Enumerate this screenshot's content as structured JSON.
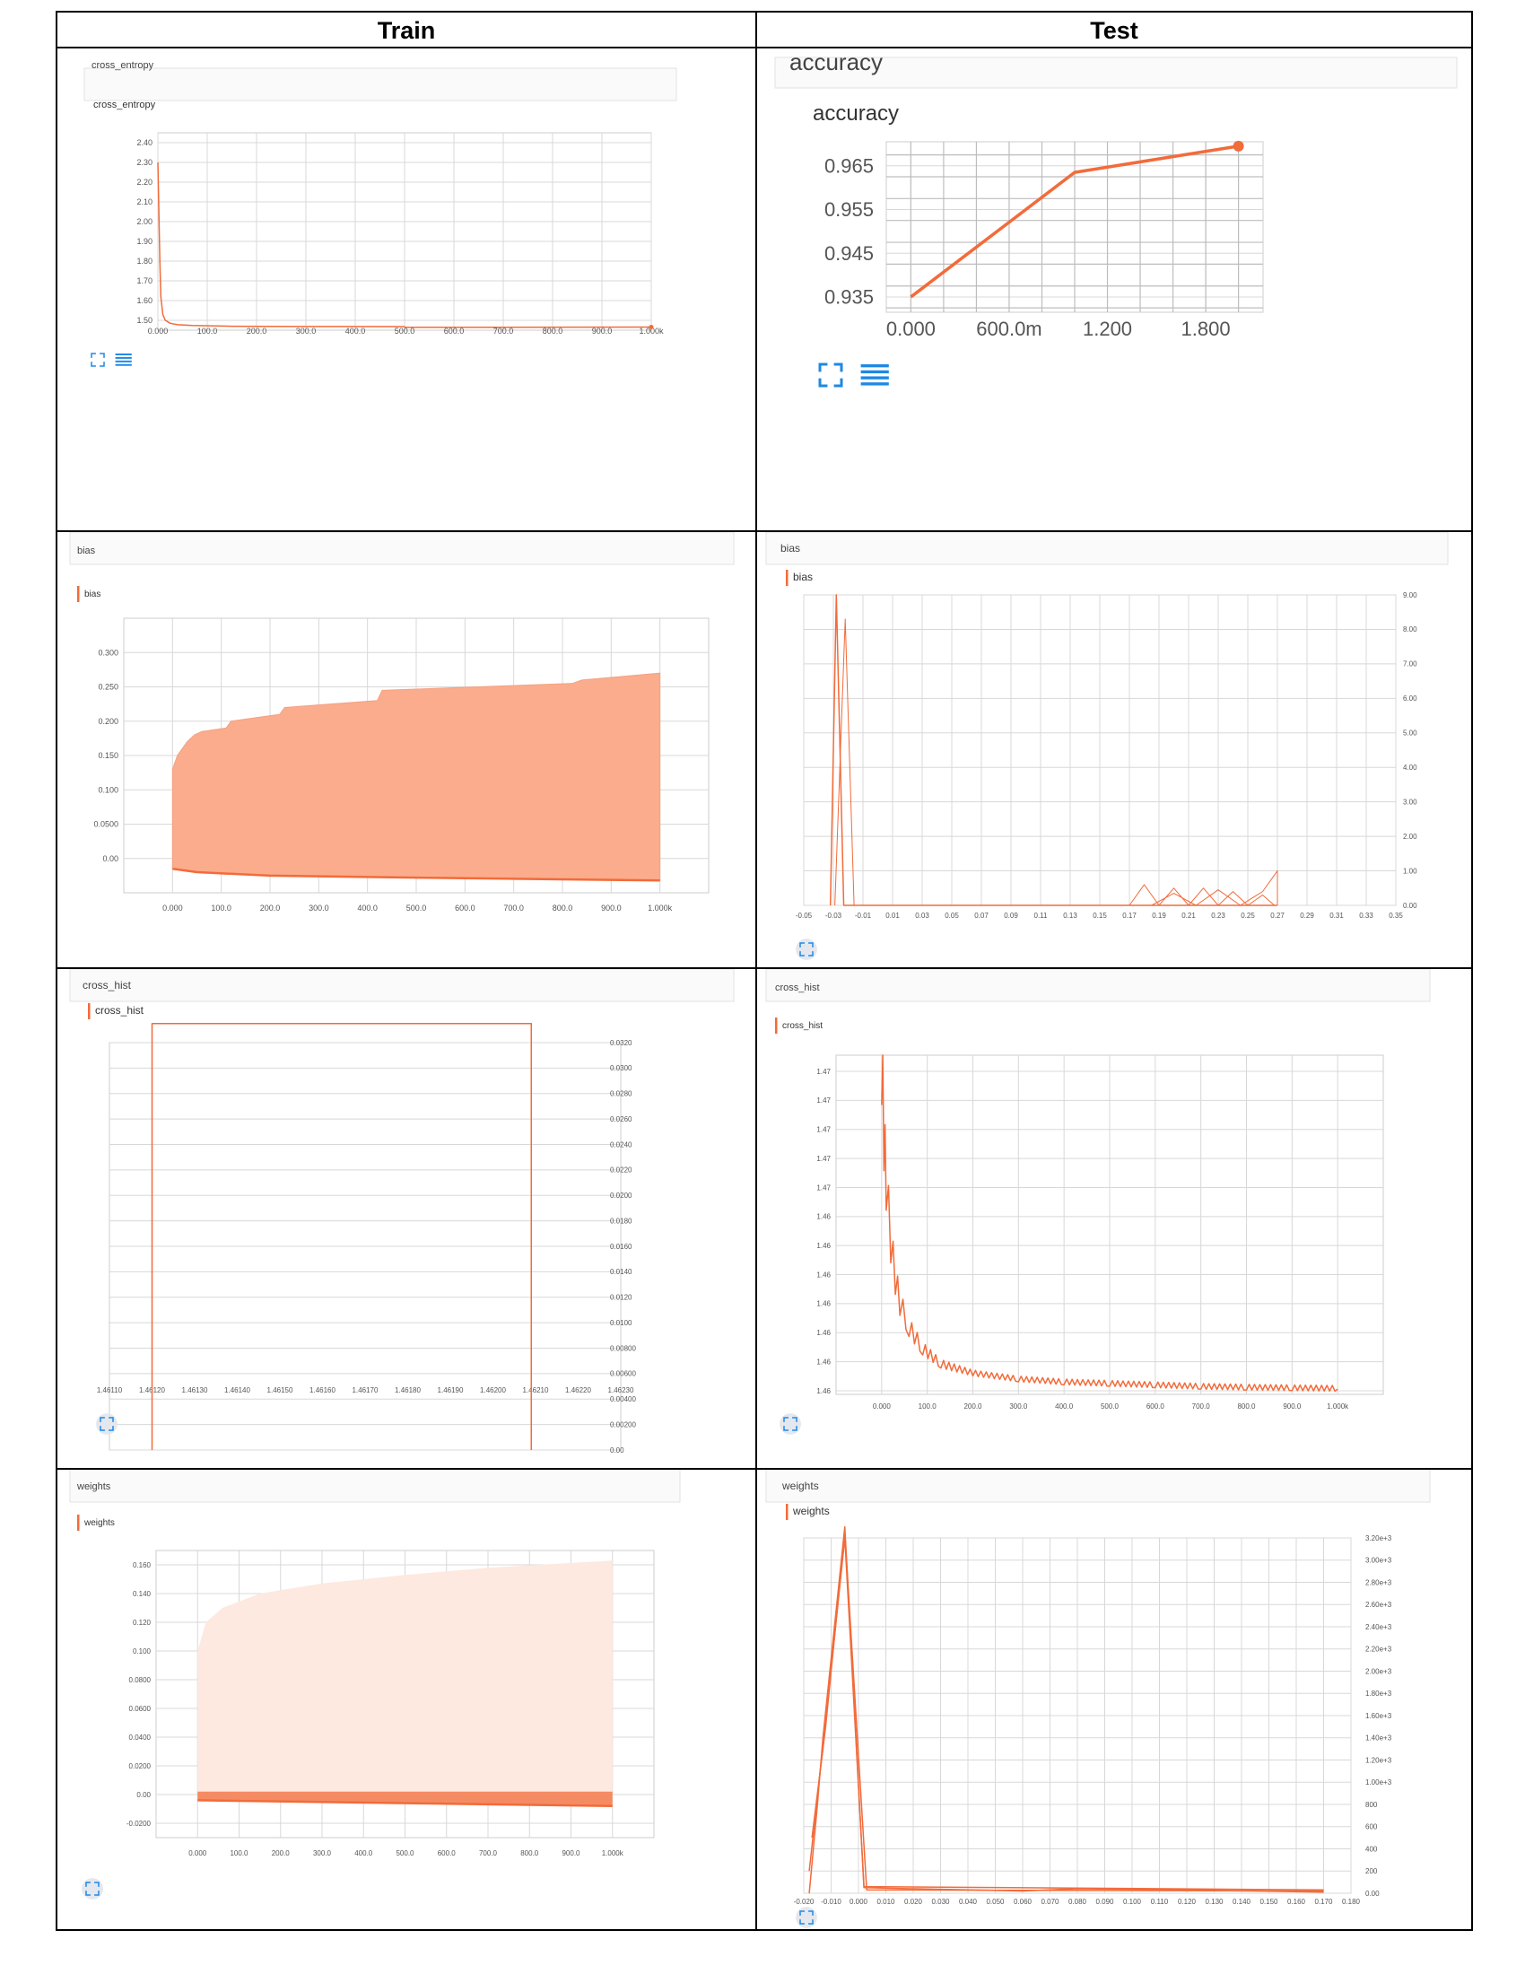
{
  "table": {
    "col_train": "Train",
    "col_test": "Test"
  },
  "colors": {
    "line": "#f26b3a",
    "fill": "#fbac8c",
    "fill_light": "#fde9e0",
    "grid": "#d8d8d8",
    "icon": "#1e88e5"
  },
  "chart_data": [
    {
      "id": "train_cross_entropy",
      "type": "line",
      "tag": "cross_entropy",
      "title": "cross_entropy",
      "xticks": [
        "0.000",
        "100.0",
        "200.0",
        "300.0",
        "400.0",
        "500.0",
        "600.0",
        "700.0",
        "800.0",
        "900.0",
        "1.000k"
      ],
      "yticks": [
        "2.40",
        "2.30",
        "2.20",
        "2.10",
        "2.00",
        "1.90",
        "1.80",
        "1.70",
        "1.60",
        "1.50"
      ],
      "xlim": [
        0,
        1000
      ],
      "ylim": [
        1.45,
        2.45
      ],
      "series": [
        {
          "points": [
            [
              0,
              2.3
            ],
            [
              2,
              2.05
            ],
            [
              4,
              1.8
            ],
            [
              6,
              1.62
            ],
            [
              10,
              1.53
            ],
            [
              15,
              1.5
            ],
            [
              25,
              1.485
            ],
            [
              40,
              1.478
            ],
            [
              70,
              1.474
            ],
            [
              150,
              1.47
            ],
            [
              300,
              1.469
            ],
            [
              499,
              1.468
            ],
            [
              500,
              1.465
            ],
            [
              700,
              1.465
            ],
            [
              1000,
              1.466
            ]
          ]
        }
      ]
    },
    {
      "id": "test_accuracy",
      "type": "line",
      "tag": "accuracy",
      "title": "accuracy",
      "xticks": [
        "0.000",
        "600.0m",
        "1.200",
        "1.800"
      ],
      "yticks": [
        "0.965",
        "0.955",
        "0.945",
        "0.935"
      ],
      "xlim": [
        -0.15,
        2.15
      ],
      "ylim": [
        0.9315,
        0.9705
      ],
      "series": [
        {
          "points": [
            [
              0,
              0.935
            ],
            [
              1,
              0.9635
            ],
            [
              2,
              0.9695
            ]
          ]
        }
      ]
    },
    {
      "id": "train_bias",
      "type": "area",
      "tag": "bias",
      "title": "bias",
      "xticks": [
        "0.000",
        "100.0",
        "200.0",
        "300.0",
        "400.0",
        "500.0",
        "600.0",
        "700.0",
        "800.0",
        "900.0",
        "1.000k"
      ],
      "yticks": [
        "0.300",
        "0.250",
        "0.200",
        "0.150",
        "0.100",
        "0.0500",
        "0.00"
      ],
      "xlim": [
        -100,
        1100
      ],
      "ylim": [
        -0.05,
        0.35
      ],
      "upper": [
        [
          0,
          0.13
        ],
        [
          5,
          0.14
        ],
        [
          10,
          0.15
        ],
        [
          20,
          0.16
        ],
        [
          30,
          0.17
        ],
        [
          45,
          0.18
        ],
        [
          60,
          0.185
        ],
        [
          110,
          0.19
        ],
        [
          120,
          0.2
        ],
        [
          220,
          0.21
        ],
        [
          230,
          0.22
        ],
        [
          420,
          0.23
        ],
        [
          430,
          0.245
        ],
        [
          820,
          0.255
        ],
        [
          840,
          0.26
        ],
        [
          1000,
          0.27
        ]
      ],
      "lower": [
        [
          0,
          -0.015
        ],
        [
          50,
          -0.02
        ],
        [
          200,
          -0.025
        ],
        [
          500,
          -0.028
        ],
        [
          1000,
          -0.032
        ]
      ]
    },
    {
      "id": "test_bias",
      "type": "line",
      "tag": "bias",
      "title": "bias",
      "xticks": [
        "-0.05",
        "-0.03",
        "-0.01",
        "0.01",
        "0.03",
        "0.05",
        "0.07",
        "0.09",
        "0.11",
        "0.13",
        "0.15",
        "0.17",
        "0.19",
        "0.21",
        "0.23",
        "0.25",
        "0.27",
        "0.29",
        "0.31",
        "0.33",
        "0.35"
      ],
      "yticks": [
        "9.00",
        "8.00",
        "7.00",
        "6.00",
        "5.00",
        "4.00",
        "3.00",
        "2.00",
        "1.00",
        "0.00"
      ],
      "xlim": [
        -0.05,
        0.35
      ],
      "ylim": [
        0,
        9
      ],
      "series": [
        {
          "points": [
            [
              -0.032,
              0
            ],
            [
              -0.028,
              9.0
            ],
            [
              -0.023,
              0
            ],
            [
              0.27,
              0
            ]
          ]
        },
        {
          "points": [
            [
              -0.029,
              0
            ],
            [
              -0.022,
              8.3
            ],
            [
              -0.016,
              0
            ]
          ]
        },
        {
          "points": [
            [
              0.17,
              0
            ],
            [
              0.18,
              0.6
            ],
            [
              0.19,
              0
            ],
            [
              0.2,
              0.5
            ],
            [
              0.21,
              0
            ],
            [
              0.22,
              0.5
            ],
            [
              0.23,
              0
            ],
            [
              0.24,
              0.4
            ],
            [
              0.25,
              0
            ],
            [
              0.26,
              0.3
            ],
            [
              0.268,
              0
            ]
          ]
        },
        {
          "points": [
            [
              0.185,
              0
            ],
            [
              0.2,
              0.35
            ],
            [
              0.215,
              0
            ],
            [
              0.23,
              0.45
            ],
            [
              0.245,
              0
            ],
            [
              0.26,
              0.4
            ],
            [
              0.27,
              1.0
            ],
            [
              0.27,
              0
            ]
          ]
        }
      ]
    },
    {
      "id": "train_cross_hist",
      "type": "line",
      "tag": "cross_hist",
      "title": "cross_hist",
      "xticks": [
        "1.46110",
        "1.46120",
        "1.46130",
        "1.46140",
        "1.46150",
        "1.46160",
        "1.46170",
        "1.46180",
        "1.46190",
        "1.46200",
        "1.46210",
        "1.46220",
        "1.46230"
      ],
      "yticks": [
        "0.0320",
        "0.0300",
        "0.0280",
        "0.0260",
        "0.0240",
        "0.0220",
        "0.0200",
        "0.0180",
        "0.0160",
        "0.0140",
        "0.0120",
        "0.0100",
        "0.00800",
        "0.00600",
        "0.00400",
        "0.00200",
        "0.00"
      ],
      "xlim": [
        1.4611,
        1.4623
      ],
      "ylim": [
        0,
        0.032
      ],
      "series": [
        {
          "points": [
            [
              1.4612,
              0
            ],
            [
              1.4612,
              0.0335
            ],
            [
              1.46209,
              0.0335
            ],
            [
              1.46209,
              0
            ]
          ]
        }
      ]
    },
    {
      "id": "test_cross_hist",
      "type": "line",
      "tag": "cross_hist",
      "title": "cross_hist",
      "xticks": [
        "0.000",
        "100.0",
        "200.0",
        "300.0",
        "400.0",
        "500.0",
        "600.0",
        "700.0",
        "800.0",
        "900.0",
        "1.000k"
      ],
      "yticks": [
        "1.47",
        "1.47",
        "1.47",
        "1.47",
        "1.47",
        "1.46",
        "1.46",
        "1.46",
        "1.46",
        "1.46",
        "1.46",
        "1.46"
      ],
      "xlim": [
        -100,
        1100
      ],
      "ylim": [
        0,
        11.5
      ],
      "series": [
        {
          "points": [
            [
              0,
              11.0
            ],
            [
              5,
              8.5
            ],
            [
              10,
              7.0
            ],
            [
              20,
              5.0
            ],
            [
              30,
              3.8
            ],
            [
              40,
              3.0
            ],
            [
              60,
              2.2
            ],
            [
              90,
              1.5
            ],
            [
              130,
              1.0
            ],
            [
              200,
              0.7
            ],
            [
              300,
              0.5
            ],
            [
              400,
              0.4
            ],
            [
              500,
              0.35
            ],
            [
              600,
              0.3
            ],
            [
              700,
              0.25
            ],
            [
              800,
              0.22
            ],
            [
              900,
              0.2
            ],
            [
              1000,
              0.18
            ]
          ]
        }
      ]
    },
    {
      "id": "train_weights",
      "type": "area",
      "tag": "weights",
      "title": "weights",
      "xticks": [
        "0.000",
        "100.0",
        "200.0",
        "300.0",
        "400.0",
        "500.0",
        "600.0",
        "700.0",
        "800.0",
        "900.0",
        "1.000k"
      ],
      "yticks": [
        "0.160",
        "0.140",
        "0.120",
        "0.100",
        "0.0800",
        "0.0600",
        "0.0400",
        "0.0200",
        "0.00",
        "-0.0200"
      ],
      "xlim": [
        -100,
        1100
      ],
      "ylim": [
        -0.03,
        0.17
      ],
      "upper": [
        [
          0,
          0.1
        ],
        [
          20,
          0.12
        ],
        [
          60,
          0.13
        ],
        [
          150,
          0.14
        ],
        [
          300,
          0.147
        ],
        [
          500,
          0.153
        ],
        [
          700,
          0.158
        ],
        [
          1000,
          0.163
        ]
      ],
      "lower": [
        [
          0,
          -0.004
        ],
        [
          1000,
          -0.008
        ]
      ],
      "band_upper": [
        [
          0,
          0.002
        ],
        [
          1000,
          0.002
        ]
      ],
      "band_lower": [
        [
          0,
          -0.004
        ],
        [
          1000,
          -0.008
        ]
      ]
    },
    {
      "id": "test_weights",
      "type": "line",
      "tag": "weights",
      "title": "weights",
      "xticks": [
        "-0.020",
        "-0.010",
        "0.000",
        "0.010",
        "0.020",
        "0.030",
        "0.040",
        "0.050",
        "0.060",
        "0.070",
        "0.080",
        "0.090",
        "0.100",
        "0.110",
        "0.120",
        "0.130",
        "0.140",
        "0.150",
        "0.160",
        "0.170",
        "0.180"
      ],
      "yticks": [
        "3.20e+3",
        "3.00e+3",
        "2.80e+3",
        "2.60e+3",
        "2.40e+3",
        "2.20e+3",
        "2.00e+3",
        "1.80e+3",
        "1.60e+3",
        "1.40e+3",
        "1.20e+3",
        "1.00e+3",
        "800",
        "600",
        "400",
        "200",
        "0.00"
      ],
      "xlim": [
        -0.02,
        0.18
      ],
      "ylim": [
        0,
        3200
      ],
      "series": [
        {
          "points": [
            [
              -0.018,
              0
            ],
            [
              -0.015,
              800
            ],
            [
              -0.013,
              1400
            ],
            [
              -0.005,
              3300
            ],
            [
              0.002,
              50
            ],
            [
              0.06,
              20
            ],
            [
              0.08,
              40
            ],
            [
              0.12,
              30
            ],
            [
              0.17,
              10
            ]
          ]
        },
        {
          "points": [
            [
              -0.018,
              200
            ],
            [
              -0.014,
              1100
            ],
            [
              -0.012,
              1500
            ],
            [
              -0.005,
              3250
            ],
            [
              0.003,
              30
            ],
            [
              0.17,
              20
            ]
          ]
        },
        {
          "points": [
            [
              -0.017,
              500
            ],
            [
              -0.013,
              1300
            ],
            [
              -0.005,
              3200
            ],
            [
              0.002,
              60
            ],
            [
              0.17,
              30
            ]
          ]
        }
      ]
    }
  ]
}
